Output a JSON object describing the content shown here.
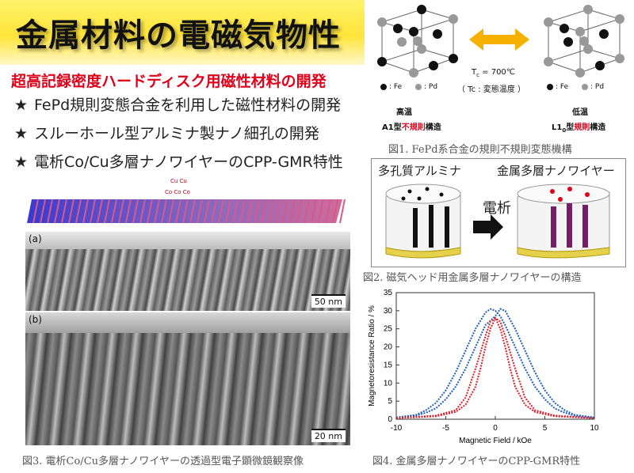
{
  "slide": {
    "title": "金属材料の電磁気物性",
    "subtitle": "超高記録密度ハードディスク用磁性材料の開発",
    "bullets": [
      {
        "star": "★",
        "text": "FePd規則変態合金を利用した磁性材料の開発"
      },
      {
        "star": "★",
        "text": "スルーホール型アルミナ製ナノ細孔の開発"
      },
      {
        "star": "★",
        "text": "電析Co/Cu多層ナノワイヤーのCPP-GMR特性"
      }
    ]
  },
  "fig1": {
    "caption": "図1. FePd系合金の規則不規則変態機構",
    "legend_fe": ": Fe",
    "legend_pd": ": Pd",
    "tc_value": "T",
    "tc_sub": "c",
    "tc_text": " = 700℃",
    "tc_note": "（ Tc : 変態温度 ）",
    "high_temp": "高温",
    "low_temp": "低温",
    "a1_prefix": "A1型",
    "a1_red": "不規則",
    "a1_suffix": "構造",
    "l10_prefix": "L1",
    "l10_sub": "0",
    "l10_mid": "型",
    "l10_red": "規則",
    "l10_suffix": "構造",
    "colors": {
      "fe": "#111111",
      "pd": "#999999",
      "arrow": "#f5b000"
    }
  },
  "fig2": {
    "caption": "図2. 磁気ヘッド用金属多層ナノワイヤーの構造",
    "label_alumina": "多孔質アルミナ",
    "label_nanowire": "金属多層ナノワイヤー",
    "label_electro": "電析"
  },
  "fig3": {
    "caption": "図3. 電析Co/Cu多層ナノワイヤーの透過型電子顕微鏡観察像",
    "panel_a": "(a)",
    "panel_b": "(b)",
    "scale_a": "50 nm",
    "scale_b": "20 nm",
    "cu_label": "Cu Cu",
    "co_label": "Co Co Co"
  },
  "fig4": {
    "caption": "図4. 金属多層ナノワイヤーのCPP-GMR特性"
  },
  "chart_data": {
    "type": "line",
    "title": "",
    "xlabel": "Magnetic Field / kOe",
    "ylabel": "Magnetoresistance Ratio / %",
    "xlim": [
      -10,
      10
    ],
    "ylim": [
      0,
      35
    ],
    "xticks": [
      -10,
      -5,
      0,
      5,
      10
    ],
    "yticks": [
      0,
      5,
      10,
      15,
      20,
      25,
      30,
      35
    ],
    "grid": false,
    "series": [
      {
        "color": "#1f5fbf",
        "x": [
          -10,
          -8,
          -7,
          -6,
          -5,
          -4,
          -3,
          -2,
          -1,
          -0.5,
          0,
          0.5,
          1,
          2,
          3,
          4,
          5,
          6,
          7,
          8,
          10
        ],
        "y": [
          0.5,
          1.2,
          2.5,
          4.5,
          8,
          13,
          19,
          25,
          29.5,
          30.5,
          30,
          28.5,
          26,
          20,
          14,
          9,
          5.5,
          3,
          1.8,
          1,
          0.4
        ]
      },
      {
        "color": "#1f5fbf",
        "x": [
          -10,
          -8,
          -7,
          -6,
          -5,
          -4,
          -3,
          -2,
          -1,
          0,
          0.5,
          1,
          2,
          3,
          4,
          5,
          6,
          7,
          8,
          10
        ],
        "y": [
          0.4,
          1,
          1.8,
          3,
          5.5,
          9,
          14,
          20,
          26,
          28.5,
          30.5,
          30,
          25,
          19,
          13,
          8,
          4.5,
          2.5,
          1.2,
          0.5
        ]
      },
      {
        "color": "#e01f2a",
        "x": [
          -10,
          -6,
          -4,
          -3,
          -2,
          -1.5,
          -1,
          -0.5,
          0,
          0.5,
          1,
          2,
          3,
          4,
          6,
          10
        ],
        "y": [
          0.3,
          0.8,
          2,
          4,
          9,
          14,
          20,
          25,
          28,
          27,
          23,
          14,
          6,
          2.5,
          1,
          0.3
        ]
      },
      {
        "color": "#e01f2a",
        "x": [
          -10,
          -6,
          -4,
          -3,
          -2,
          -1,
          -0.5,
          0,
          0.5,
          1,
          1.5,
          2,
          3,
          4,
          6,
          10
        ],
        "y": [
          0.3,
          1,
          2.5,
          6,
          14,
          23,
          27,
          28,
          25,
          20,
          14,
          9,
          4,
          2,
          0.8,
          0.3
        ]
      }
    ]
  }
}
